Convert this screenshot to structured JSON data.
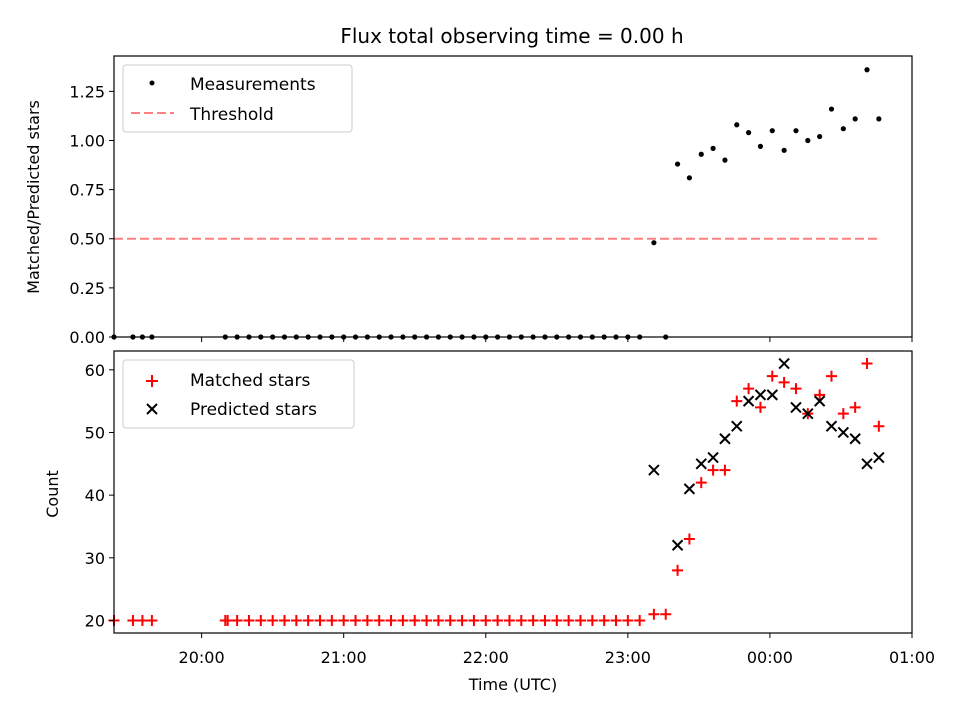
{
  "figure": {
    "title": "Flux total observing time = 0.00 h"
  },
  "chart_data": [
    {
      "type": "scatter",
      "ylabel": "Matched/Predicted stars",
      "xlabel": "",
      "x_axis": "time (UTC)",
      "xlim": [
        "19:23",
        "01:00"
      ],
      "ylim": [
        0,
        1.43
      ],
      "xticks": [
        "20:00",
        "21:00",
        "22:00",
        "23:00",
        "00:00",
        "01:00"
      ],
      "yticks": [
        "0.00",
        "0.25",
        "0.50",
        "0.75",
        "1.00",
        "1.25"
      ],
      "grid": false,
      "legend_position": "top-left",
      "series": [
        {
          "name": "Measurements",
          "marker": "dot",
          "color": "#000000",
          "points": [
            [
              "19:23",
              0
            ],
            [
              "19:31",
              0
            ],
            [
              "19:35",
              0
            ],
            [
              "19:39",
              0
            ],
            [
              "20:10",
              0
            ],
            [
              "20:15",
              0
            ],
            [
              "20:20",
              0
            ],
            [
              "20:25",
              0
            ],
            [
              "20:30",
              0
            ],
            [
              "20:35",
              0
            ],
            [
              "20:40",
              0
            ],
            [
              "20:45",
              0
            ],
            [
              "20:50",
              0
            ],
            [
              "20:55",
              0
            ],
            [
              "21:00",
              0
            ],
            [
              "21:05",
              0
            ],
            [
              "21:10",
              0
            ],
            [
              "21:15",
              0
            ],
            [
              "21:20",
              0
            ],
            [
              "21:25",
              0
            ],
            [
              "21:30",
              0
            ],
            [
              "21:35",
              0
            ],
            [
              "21:40",
              0
            ],
            [
              "21:45",
              0
            ],
            [
              "21:50",
              0
            ],
            [
              "21:55",
              0
            ],
            [
              "22:00",
              0
            ],
            [
              "22:05",
              0
            ],
            [
              "22:10",
              0
            ],
            [
              "22:15",
              0
            ],
            [
              "22:20",
              0
            ],
            [
              "22:25",
              0
            ],
            [
              "22:30",
              0
            ],
            [
              "22:35",
              0
            ],
            [
              "22:40",
              0
            ],
            [
              "22:45",
              0
            ],
            [
              "22:50",
              0
            ],
            [
              "22:55",
              0
            ],
            [
              "23:00",
              0
            ],
            [
              "23:05",
              0
            ],
            [
              "23:11",
              0.48
            ],
            [
              "23:16",
              0
            ],
            [
              "23:21",
              0.88
            ],
            [
              "23:26",
              0.81
            ],
            [
              "23:31",
              0.93
            ],
            [
              "23:36",
              0.96
            ],
            [
              "23:41",
              0.9
            ],
            [
              "23:46",
              1.08
            ],
            [
              "23:51",
              1.04
            ],
            [
              "23:56",
              0.97
            ],
            [
              "00:01",
              1.05
            ],
            [
              "00:06",
              0.95
            ],
            [
              "00:11",
              1.05
            ],
            [
              "00:16",
              1.0
            ],
            [
              "00:21",
              1.02
            ],
            [
              "00:26",
              1.16
            ],
            [
              "00:31",
              1.06
            ],
            [
              "00:36",
              1.11
            ],
            [
              "00:41",
              1.36
            ],
            [
              "00:46",
              1.11
            ]
          ]
        },
        {
          "name": "Threshold",
          "marker": "dashed-line",
          "color": "#ff8080",
          "points": [
            [
              "19:23",
              0.5
            ],
            [
              "00:46",
              0.5
            ]
          ]
        }
      ]
    },
    {
      "type": "scatter",
      "ylabel": "Count",
      "xlabel": "Time (UTC)",
      "x_axis": "time (UTC)",
      "xlim": [
        "19:23",
        "01:00"
      ],
      "ylim": [
        18,
        63
      ],
      "xticks": [
        "20:00",
        "21:00",
        "22:00",
        "23:00",
        "00:00",
        "01:00"
      ],
      "yticks": [
        "20",
        "30",
        "40",
        "50",
        "60"
      ],
      "grid": false,
      "legend_position": "top-left",
      "series": [
        {
          "name": "Matched stars",
          "marker": "plus",
          "color": "#ff0000",
          "points": [
            [
              "19:23",
              20
            ],
            [
              "19:31",
              20
            ],
            [
              "19:35",
              20
            ],
            [
              "19:39",
              20
            ],
            [
              "20:10",
              20
            ],
            [
              "20:11",
              20
            ],
            [
              "20:15",
              20
            ],
            [
              "20:20",
              20
            ],
            [
              "20:25",
              20
            ],
            [
              "20:30",
              20
            ],
            [
              "20:35",
              20
            ],
            [
              "20:40",
              20
            ],
            [
              "20:45",
              20
            ],
            [
              "20:50",
              20
            ],
            [
              "20:55",
              20
            ],
            [
              "21:00",
              20
            ],
            [
              "21:05",
              20
            ],
            [
              "21:10",
              20
            ],
            [
              "21:15",
              20
            ],
            [
              "21:20",
              20
            ],
            [
              "21:25",
              20
            ],
            [
              "21:30",
              20
            ],
            [
              "21:35",
              20
            ],
            [
              "21:40",
              20
            ],
            [
              "21:45",
              20
            ],
            [
              "21:50",
              20
            ],
            [
              "21:55",
              20
            ],
            [
              "22:00",
              20
            ],
            [
              "22:05",
              20
            ],
            [
              "22:10",
              20
            ],
            [
              "22:15",
              20
            ],
            [
              "22:20",
              20
            ],
            [
              "22:25",
              20
            ],
            [
              "22:30",
              20
            ],
            [
              "22:35",
              20
            ],
            [
              "22:40",
              20
            ],
            [
              "22:45",
              20
            ],
            [
              "22:50",
              20
            ],
            [
              "22:55",
              20
            ],
            [
              "23:00",
              20
            ],
            [
              "23:05",
              20
            ],
            [
              "23:11",
              21
            ],
            [
              "23:16",
              21
            ],
            [
              "23:21",
              28
            ],
            [
              "23:26",
              33
            ],
            [
              "23:31",
              42
            ],
            [
              "23:36",
              44
            ],
            [
              "23:41",
              44
            ],
            [
              "23:46",
              55
            ],
            [
              "23:51",
              57
            ],
            [
              "23:56",
              54
            ],
            [
              "00:01",
              59
            ],
            [
              "00:06",
              58
            ],
            [
              "00:11",
              57
            ],
            [
              "00:16",
              53
            ],
            [
              "00:21",
              56
            ],
            [
              "00:26",
              59
            ],
            [
              "00:31",
              53
            ],
            [
              "00:36",
              54
            ],
            [
              "00:41",
              61
            ],
            [
              "00:46",
              51
            ]
          ]
        },
        {
          "name": "Predicted stars",
          "marker": "x",
          "color": "#000000",
          "points": [
            [
              "23:11",
              44
            ],
            [
              "23:21",
              32
            ],
            [
              "23:26",
              41
            ],
            [
              "23:31",
              45
            ],
            [
              "23:36",
              46
            ],
            [
              "23:41",
              49
            ],
            [
              "23:46",
              51
            ],
            [
              "23:51",
              55
            ],
            [
              "23:56",
              56
            ],
            [
              "00:01",
              56
            ],
            [
              "00:06",
              61
            ],
            [
              "00:11",
              54
            ],
            [
              "00:16",
              53
            ],
            [
              "00:21",
              55
            ],
            [
              "00:26",
              51
            ],
            [
              "00:31",
              50
            ],
            [
              "00:36",
              49
            ],
            [
              "00:41",
              45
            ],
            [
              "00:46",
              46
            ]
          ]
        }
      ]
    }
  ]
}
